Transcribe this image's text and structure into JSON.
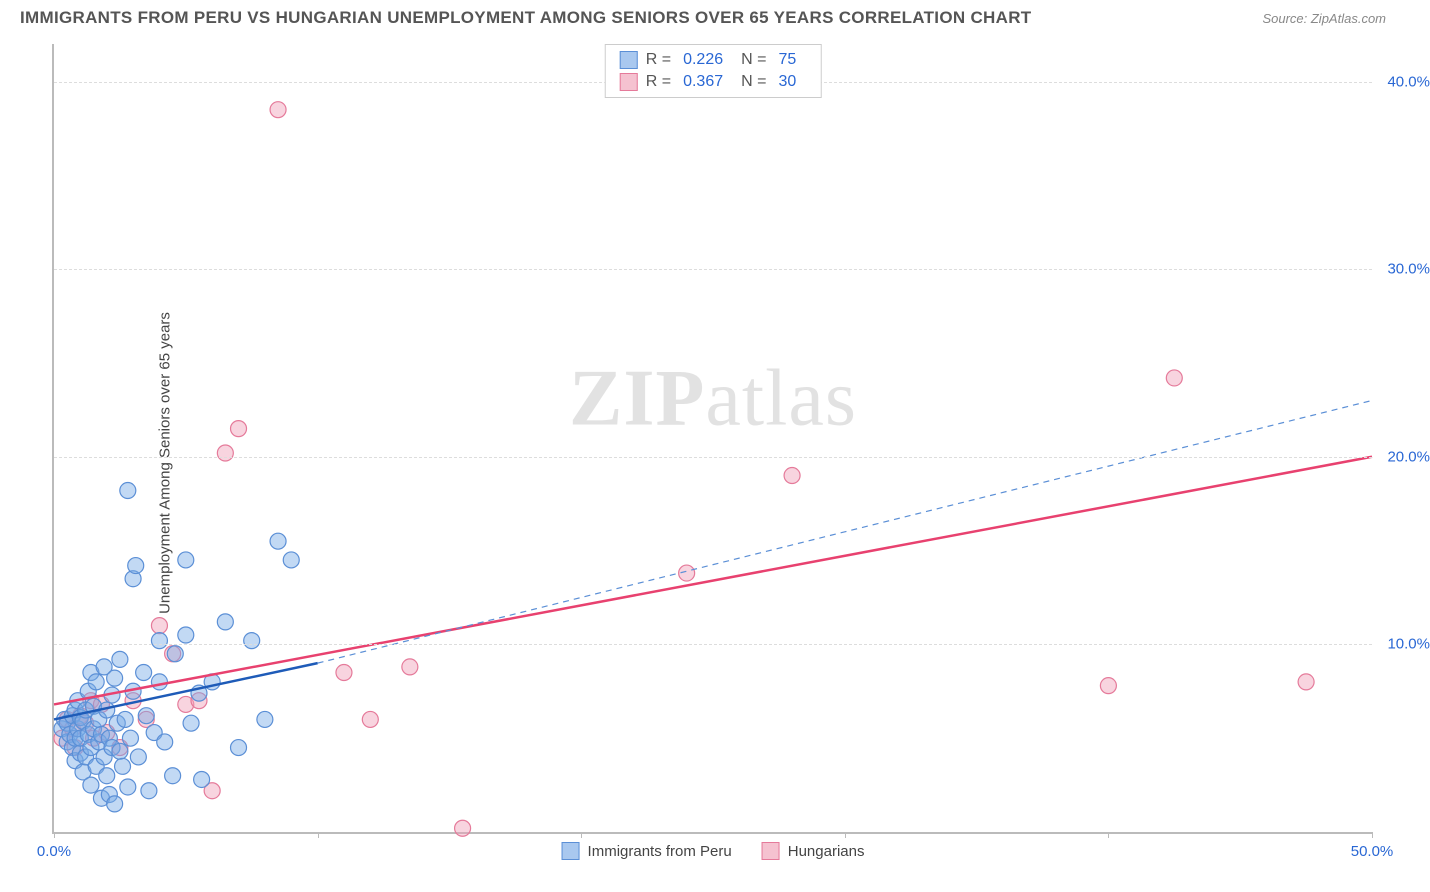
{
  "header": {
    "title": "IMMIGRANTS FROM PERU VS HUNGARIAN UNEMPLOYMENT AMONG SENIORS OVER 65 YEARS CORRELATION CHART",
    "source_label": "Source: ZipAtlas.com"
  },
  "axes": {
    "ylabel": "Unemployment Among Seniors over 65 years",
    "xlim": [
      0,
      50
    ],
    "ylim": [
      0,
      42
    ],
    "xtick_values": [
      0,
      10,
      20,
      30,
      40,
      50
    ],
    "xtick_labels": [
      "0.0%",
      "",
      "",
      "",
      "",
      "50.0%"
    ],
    "ytick_values": [
      10,
      20,
      30,
      40
    ],
    "ytick_labels": [
      "10.0%",
      "20.0%",
      "30.0%",
      "40.0%"
    ],
    "grid_color": "#dddddd",
    "axis_color": "#bbbbbb",
    "tick_label_color": "#2967d4",
    "label_fontsize": 15
  },
  "watermark": {
    "prefix": "ZIP",
    "suffix": "atlas",
    "color": "#cccccc"
  },
  "legend_stats": {
    "rows": [
      {
        "swatch_fill": "#a9c8ef",
        "swatch_border": "#5b8fd6",
        "r_label": "R =",
        "r_value": "0.226",
        "n_label": "N =",
        "n_value": "75"
      },
      {
        "swatch_fill": "#f5c2d0",
        "swatch_border": "#e57a9a",
        "r_label": "R =",
        "r_value": "0.367",
        "n_label": "N =",
        "n_value": "30"
      }
    ]
  },
  "bottom_legend": {
    "items": [
      {
        "swatch_fill": "#a9c8ef",
        "swatch_border": "#5b8fd6",
        "label": "Immigrants from Peru"
      },
      {
        "swatch_fill": "#f5c2d0",
        "swatch_border": "#e57a9a",
        "label": "Hungarians"
      }
    ]
  },
  "series": {
    "peru": {
      "color_fill": "rgba(120,170,230,0.45)",
      "color_stroke": "#5b8fd6",
      "marker_radius": 8,
      "trend_solid": {
        "x1": 0,
        "y1": 6.0,
        "x2": 10,
        "y2": 9.0,
        "stroke": "#1e5bb8",
        "width": 2.5
      },
      "trend_dash": {
        "x1": 10,
        "y1": 9.0,
        "x2": 50,
        "y2": 23.0,
        "stroke": "#5b8fd6",
        "width": 1.2,
        "dash": "6,5"
      },
      "points": [
        [
          0.3,
          5.5
        ],
        [
          0.4,
          6.0
        ],
        [
          0.5,
          4.8
        ],
        [
          0.5,
          5.8
        ],
        [
          0.6,
          5.2
        ],
        [
          0.7,
          6.2
        ],
        [
          0.7,
          4.5
        ],
        [
          0.8,
          5.0
        ],
        [
          0.8,
          6.5
        ],
        [
          0.8,
          3.8
        ],
        [
          0.9,
          5.5
        ],
        [
          0.9,
          7.0
        ],
        [
          1.0,
          4.2
        ],
        [
          1.0,
          6.1
        ],
        [
          1.0,
          5.0
        ],
        [
          1.1,
          5.9
        ],
        [
          1.1,
          3.2
        ],
        [
          1.2,
          6.5
        ],
        [
          1.2,
          4.0
        ],
        [
          1.3,
          5.2
        ],
        [
          1.3,
          7.5
        ],
        [
          1.4,
          4.5
        ],
        [
          1.4,
          8.5
        ],
        [
          1.4,
          2.5
        ],
        [
          1.5,
          5.5
        ],
        [
          1.5,
          6.7
        ],
        [
          1.6,
          3.5
        ],
        [
          1.6,
          8.0
        ],
        [
          1.7,
          4.8
        ],
        [
          1.7,
          6.0
        ],
        [
          1.8,
          1.8
        ],
        [
          1.8,
          5.2
        ],
        [
          1.9,
          4.0
        ],
        [
          1.9,
          8.8
        ],
        [
          2.0,
          3.0
        ],
        [
          2.0,
          6.5
        ],
        [
          2.1,
          5.0
        ],
        [
          2.1,
          2.0
        ],
        [
          2.2,
          7.3
        ],
        [
          2.2,
          4.5
        ],
        [
          2.3,
          8.2
        ],
        [
          2.3,
          1.5
        ],
        [
          2.4,
          5.8
        ],
        [
          2.5,
          4.3
        ],
        [
          2.5,
          9.2
        ],
        [
          2.6,
          3.5
        ],
        [
          2.7,
          6.0
        ],
        [
          2.8,
          2.4
        ],
        [
          2.8,
          18.2
        ],
        [
          2.9,
          5.0
        ],
        [
          3.0,
          7.5
        ],
        [
          3.0,
          13.5
        ],
        [
          3.1,
          14.2
        ],
        [
          3.2,
          4.0
        ],
        [
          3.4,
          8.5
        ],
        [
          3.5,
          6.2
        ],
        [
          3.6,
          2.2
        ],
        [
          3.8,
          5.3
        ],
        [
          4.0,
          10.2
        ],
        [
          4.0,
          8.0
        ],
        [
          4.2,
          4.8
        ],
        [
          4.5,
          3.0
        ],
        [
          4.6,
          9.5
        ],
        [
          5.0,
          14.5
        ],
        [
          5.0,
          10.5
        ],
        [
          5.2,
          5.8
        ],
        [
          5.5,
          7.4
        ],
        [
          5.6,
          2.8
        ],
        [
          6.0,
          8.0
        ],
        [
          6.5,
          11.2
        ],
        [
          7.0,
          4.5
        ],
        [
          7.5,
          10.2
        ],
        [
          8.0,
          6.0
        ],
        [
          8.5,
          15.5
        ],
        [
          9.0,
          14.5
        ]
      ]
    },
    "hungarians": {
      "color_fill": "rgba(240,160,185,0.45)",
      "color_stroke": "#e57a9a",
      "marker_radius": 8,
      "trend_solid": {
        "x1": 0,
        "y1": 6.8,
        "x2": 50,
        "y2": 20.0,
        "stroke": "#e8416f",
        "width": 2.5
      },
      "points": [
        [
          0.3,
          5.0
        ],
        [
          0.5,
          6.0
        ],
        [
          0.7,
          5.5
        ],
        [
          0.8,
          4.5
        ],
        [
          1.0,
          6.2
        ],
        [
          1.2,
          5.8
        ],
        [
          1.4,
          7.0
        ],
        [
          1.5,
          5.0
        ],
        [
          1.8,
          6.8
        ],
        [
          2.0,
          5.3
        ],
        [
          2.5,
          4.5
        ],
        [
          3.0,
          7.0
        ],
        [
          3.5,
          6.0
        ],
        [
          4.0,
          11.0
        ],
        [
          4.5,
          9.5
        ],
        [
          5.0,
          6.8
        ],
        [
          5.5,
          7.0
        ],
        [
          6.0,
          2.2
        ],
        [
          6.5,
          20.2
        ],
        [
          7.0,
          21.5
        ],
        [
          8.5,
          38.5
        ],
        [
          11.0,
          8.5
        ],
        [
          12.0,
          6.0
        ],
        [
          13.5,
          8.8
        ],
        [
          15.5,
          0.2
        ],
        [
          24.0,
          13.8
        ],
        [
          28.0,
          19.0
        ],
        [
          40.0,
          7.8
        ],
        [
          42.5,
          24.2
        ],
        [
          47.5,
          8.0
        ]
      ]
    }
  },
  "styling": {
    "background_color": "#ffffff",
    "title_color": "#555555",
    "title_fontsize": 17,
    "source_color": "#888888",
    "source_fontsize": 13
  }
}
